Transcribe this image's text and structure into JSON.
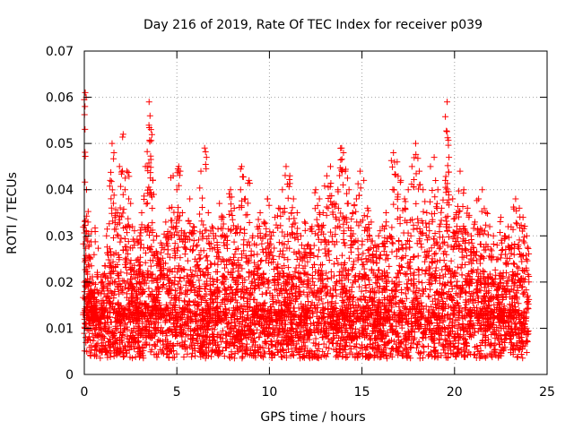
{
  "chart_data": {
    "type": "scatter",
    "title": "Day 216 of 2019, Rate Of TEC Index for receiver p039",
    "xlabel": "GPS time / hours",
    "ylabel": "ROTI / TECUs",
    "xlim": [
      0,
      25
    ],
    "ylim": [
      0,
      0.07
    ],
    "xticks": [
      0,
      5,
      10,
      15,
      20,
      25
    ],
    "xtick_labels": [
      "0",
      "5",
      "10",
      "15",
      "20",
      "25"
    ],
    "yticks": [
      0,
      0.01,
      0.02,
      0.03,
      0.04,
      0.05,
      0.06,
      0.07
    ],
    "ytick_labels": [
      "0",
      "0.01",
      "0.02",
      "0.03",
      "0.04",
      "0.05",
      "0.06",
      "0.07"
    ],
    "grid": true,
    "marker": "+",
    "color": "#ff0000",
    "series": [
      {
        "name": "ROTI",
        "x": [
          0.05,
          0.1,
          0.12,
          0.2,
          0.3,
          0.35,
          0.5,
          0.6,
          0.8,
          1.0,
          1.2,
          1.4,
          1.5,
          1.6,
          1.8,
          1.9,
          2.1,
          2.2,
          2.3,
          2.4,
          2.6,
          2.7,
          2.9,
          3.0,
          3.1,
          3.3,
          3.5,
          3.55,
          3.6,
          3.7,
          3.9,
          4.0,
          4.2,
          4.4,
          4.6,
          4.8,
          5.0,
          5.1,
          5.3,
          5.5,
          5.7,
          5.9,
          6.1,
          6.3,
          6.5,
          6.7,
          6.9,
          7.1,
          7.3,
          7.5,
          7.7,
          7.9,
          8.1,
          8.3,
          8.5,
          8.7,
          8.9,
          9.1,
          9.3,
          9.5,
          9.7,
          9.9,
          10.1,
          10.3,
          10.5,
          10.7,
          10.9,
          11.1,
          11.3,
          11.5,
          11.7,
          11.9,
          12.1,
          12.3,
          12.5,
          12.7,
          12.9,
          13.1,
          13.3,
          13.5,
          13.7,
          13.9,
          14.0,
          14.1,
          14.3,
          14.5,
          14.7,
          14.9,
          15.1,
          15.3,
          15.5,
          15.7,
          15.9,
          16.1,
          16.3,
          16.5,
          16.7,
          16.9,
          17.1,
          17.3,
          17.5,
          17.7,
          17.9,
          18.1,
          18.3,
          18.5,
          18.7,
          18.9,
          19.1,
          19.3,
          19.5,
          19.6,
          19.7,
          19.9,
          20.1,
          20.3,
          20.5,
          20.7,
          20.9,
          21.1,
          21.3,
          21.5,
          21.7,
          21.9,
          22.1,
          22.3,
          22.5,
          22.7,
          22.9,
          23.1,
          23.3,
          23.5,
          23.7,
          23.9
        ],
        "y": [
          0.061,
          0.06,
          0.04,
          0.033,
          0.025,
          0.018,
          0.015,
          0.013,
          0.012,
          0.02,
          0.03,
          0.042,
          0.05,
          0.048,
          0.035,
          0.045,
          0.052,
          0.04,
          0.044,
          0.038,
          0.032,
          0.028,
          0.025,
          0.03,
          0.035,
          0.045,
          0.059,
          0.056,
          0.053,
          0.042,
          0.03,
          0.025,
          0.028,
          0.033,
          0.036,
          0.043,
          0.04,
          0.045,
          0.035,
          0.03,
          0.038,
          0.032,
          0.028,
          0.044,
          0.049,
          0.035,
          0.032,
          0.03,
          0.037,
          0.034,
          0.03,
          0.04,
          0.036,
          0.032,
          0.045,
          0.038,
          0.042,
          0.03,
          0.028,
          0.035,
          0.033,
          0.038,
          0.03,
          0.034,
          0.036,
          0.04,
          0.045,
          0.043,
          0.038,
          0.035,
          0.03,
          0.033,
          0.028,
          0.032,
          0.04,
          0.038,
          0.035,
          0.043,
          0.045,
          0.037,
          0.04,
          0.049,
          0.048,
          0.044,
          0.04,
          0.035,
          0.038,
          0.044,
          0.042,
          0.036,
          0.033,
          0.028,
          0.03,
          0.032,
          0.035,
          0.03,
          0.048,
          0.046,
          0.042,
          0.038,
          0.04,
          0.045,
          0.05,
          0.044,
          0.04,
          0.035,
          0.045,
          0.047,
          0.04,
          0.036,
          0.042,
          0.059,
          0.047,
          0.038,
          0.035,
          0.044,
          0.04,
          0.036,
          0.03,
          0.033,
          0.038,
          0.04,
          0.035,
          0.032,
          0.03,
          0.028,
          0.034,
          0.03,
          0.032,
          0.028,
          0.038,
          0.036,
          0.034,
          0.03
        ]
      }
    ]
  }
}
